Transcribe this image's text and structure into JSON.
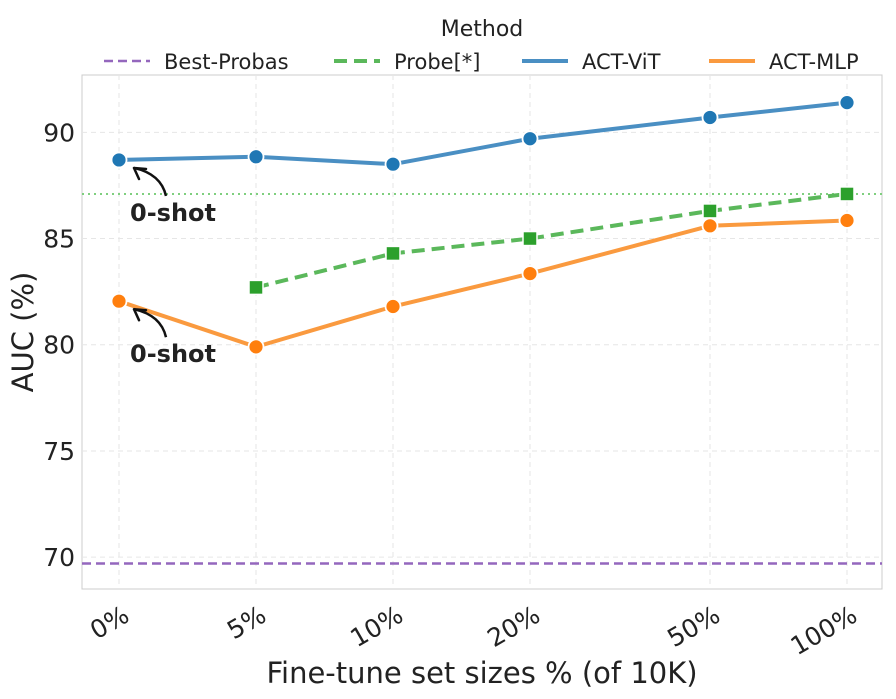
{
  "chart_data": {
    "type": "line",
    "title": "",
    "xlabel": "Fine-tune set sizes % (of 10K)",
    "ylabel": "AUC (%)",
    "categories": [
      "0%",
      "5%",
      "10%",
      "20%",
      "50%",
      "100%"
    ],
    "ylim": [
      68.5,
      92.7
    ],
    "yticks": [
      70,
      75,
      80,
      85,
      90
    ],
    "grid": true,
    "legend": {
      "title": "Method",
      "placement": "top",
      "entries": [
        "Best-Probas",
        "Probe[*]",
        "ACT-ViT",
        "ACT-MLP"
      ]
    },
    "series": [
      {
        "name": "Best-Probas",
        "style": "dashed-hline",
        "color": "#9467bd",
        "value": 69.7
      },
      {
        "name": "Probe[*]",
        "style": "dashed",
        "marker": "square",
        "color": "#2ca02c",
        "line_color": "#5bb85b",
        "values": [
          null,
          82.7,
          84.3,
          85.0,
          86.3,
          87.1
        ]
      },
      {
        "name": "ACT-ViT",
        "style": "solid",
        "marker": "circle",
        "color": "#1f77b4",
        "line_color": "#4a8fc3",
        "values": [
          88.7,
          88.85,
          88.5,
          89.7,
          90.7,
          91.4
        ]
      },
      {
        "name": "ACT-MLP",
        "style": "solid",
        "marker": "circle",
        "color": "#ff7f0e",
        "line_color": "#fa9a3f",
        "values": [
          82.05,
          79.9,
          81.8,
          83.35,
          85.6,
          85.85
        ]
      }
    ],
    "reference_line": {
      "value": 87.1,
      "style": "dotted",
      "color": "#7fcf7f"
    },
    "annotations": [
      {
        "text": "0-shot",
        "series": "ACT-ViT",
        "category_index": 0
      },
      {
        "text": "0-shot",
        "series": "ACT-MLP",
        "category_index": 0
      }
    ]
  }
}
